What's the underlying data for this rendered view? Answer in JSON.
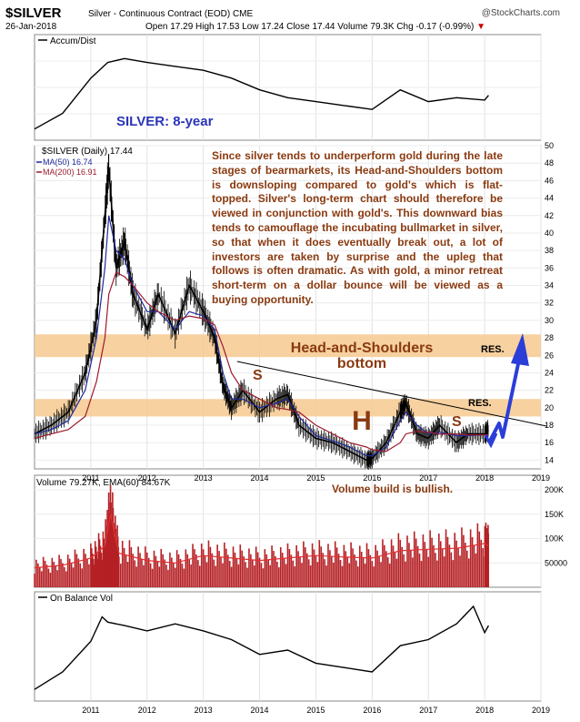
{
  "header": {
    "symbol": "$SILVER",
    "description": "Silver - Continuous Contract (EOD) CME",
    "site": "@StockCharts.com",
    "date": "26-Jan-2018",
    "ohlc": "Open 17.29  High 17.53  Low 17.24  Close 17.44  Volume 79.3K  Chg -0.17 (-0.99%)",
    "chg_arrow": "▼"
  },
  "annotations": {
    "period_label": "SILVER: 8-year",
    "note": "Since silver tends to underperform gold during the late stages of bearmarkets, its Head-and-Shoulders bottom is downsloping compared to gold's which is flat-topped. Silver's long-term chart should therefore be viewed in conjunction with gold's. This downward bias tends to camouflage the incubating bullmarket in silver, so that when it does eventually break out, a lot of investors are taken by surprise and the upleg that follows is often dramatic. As with gold, a minor retreat short-term on a dollar bounce will be viewed as a buying opportunity.",
    "hs_label_1": "Head-and-Shoulders",
    "hs_label_2": "bottom",
    "res_upper": "RES.",
    "res_lower": "RES.",
    "s_left": "S",
    "h_label": "H",
    "s_right": "S",
    "volume_note": "Volume build is bullish."
  },
  "colors": {
    "price": "#000000",
    "ma50": "#1f2a9c",
    "ma200": "#9c1a2e",
    "zone": "#f6c98f",
    "annotation": "#8a3a10",
    "volume": "#b52025",
    "arrow": "#2b3ed8",
    "label_blue": "#2a35b8"
  },
  "chart_data": [
    {
      "type": "line",
      "panel": "accum_dist",
      "legend": [
        "Accum/Dist"
      ],
      "x": [
        2010.0,
        2010.5,
        2011.0,
        2011.3,
        2011.6,
        2012.0,
        2012.5,
        2013.0,
        2013.5,
        2014.0,
        2014.5,
        2015.0,
        2015.5,
        2016.0,
        2016.5,
        2017.0,
        2017.5,
        2018.0,
        2018.07
      ],
      "y": [
        0.05,
        0.25,
        0.7,
        0.9,
        0.95,
        0.9,
        0.85,
        0.8,
        0.7,
        0.55,
        0.45,
        0.4,
        0.35,
        0.3,
        0.55,
        0.4,
        0.45,
        0.42,
        0.48
      ],
      "normalized": true,
      "grid": true
    },
    {
      "type": "line",
      "panel": "price",
      "title": "$SILVER (Daily) 17.44",
      "series_names": [
        "MA(50) 16.74",
        "MA(200) 16.91"
      ],
      "x": [
        2010.0,
        2010.3,
        2010.6,
        2010.9,
        2011.1,
        2011.25,
        2011.32,
        2011.45,
        2011.6,
        2011.75,
        2012.0,
        2012.2,
        2012.5,
        2012.75,
        2013.0,
        2013.2,
        2013.35,
        2013.5,
        2013.7,
        2014.0,
        2014.3,
        2014.5,
        2014.7,
        2015.0,
        2015.3,
        2015.6,
        2015.9,
        2016.0,
        2016.25,
        2016.5,
        2016.6,
        2016.8,
        2017.0,
        2017.2,
        2017.5,
        2017.7,
        2018.0,
        2018.07
      ],
      "close": [
        17.0,
        18.0,
        19.5,
        24.0,
        30.0,
        42.0,
        47.5,
        36.0,
        39.0,
        33.0,
        29.0,
        33.0,
        28.5,
        34.0,
        31.0,
        28.0,
        22.5,
        20.0,
        22.0,
        19.5,
        21.0,
        21.5,
        18.0,
        16.5,
        16.0,
        15.0,
        14.0,
        14.2,
        16.0,
        19.5,
        20.5,
        17.0,
        16.5,
        18.0,
        16.0,
        17.0,
        17.0,
        17.44
      ],
      "ma50": [
        17.0,
        17.5,
        18.5,
        22.0,
        28.0,
        36.0,
        42.0,
        38.0,
        37.0,
        34.0,
        31.0,
        31.0,
        29.0,
        31.0,
        30.5,
        29.0,
        24.0,
        21.0,
        21.0,
        20.0,
        20.5,
        21.0,
        19.0,
        16.8,
        16.2,
        15.5,
        14.5,
        14.5,
        15.5,
        18.5,
        19.5,
        18.0,
        17.0,
        17.2,
        16.8,
        16.8,
        16.9,
        16.74
      ],
      "ma200": [
        16.5,
        17.0,
        17.5,
        19.0,
        23.0,
        28.0,
        33.0,
        35.5,
        35.0,
        34.0,
        32.0,
        31.0,
        30.0,
        30.5,
        30.2,
        29.5,
        27.0,
        24.0,
        22.0,
        21.0,
        20.0,
        19.8,
        19.5,
        18.0,
        17.0,
        16.0,
        15.5,
        15.2,
        15.0,
        16.0,
        17.0,
        17.3,
        17.2,
        17.0,
        17.0,
        16.9,
        16.9,
        16.91
      ],
      "ylim": [
        13,
        50
      ],
      "y_ticks": [
        14,
        16,
        18,
        20,
        22,
        24,
        26,
        28,
        30,
        32,
        34,
        36,
        38,
        40,
        42,
        44,
        46,
        48,
        50
      ],
      "zones": [
        [
          25.8,
          28.4
        ],
        [
          19.0,
          21.0
        ]
      ],
      "trendline": [
        [
          2013.6,
          25.3
        ],
        [
          2019.1,
          17.9
        ]
      ],
      "grid": true
    },
    {
      "type": "bar",
      "panel": "volume",
      "legend": [
        "Volume 79.27K, EMA(60) 84.67K"
      ],
      "x": [
        2010.0,
        2010.5,
        2011.0,
        2011.25,
        2011.35,
        2011.5,
        2012.0,
        2012.5,
        2013.0,
        2013.5,
        2014.0,
        2014.5,
        2015.0,
        2015.5,
        2016.0,
        2016.5,
        2017.0,
        2017.5,
        2018.0,
        2018.07
      ],
      "ema": [
        40000,
        45000,
        60000,
        85000,
        150000,
        70000,
        55000,
        50000,
        65000,
        60000,
        55000,
        60000,
        65000,
        62000,
        60000,
        75000,
        78000,
        80000,
        90000,
        84670
      ],
      "y_ticks": [
        50000,
        100000,
        150000,
        200000
      ],
      "y_tick_labels": [
        "50000",
        "100K",
        "150K",
        "200K"
      ],
      "grid": true
    },
    {
      "type": "line",
      "panel": "obv",
      "legend": [
        "On Balance Vol"
      ],
      "x": [
        2010.0,
        2010.5,
        2011.0,
        2011.2,
        2011.3,
        2011.6,
        2012.0,
        2012.5,
        2013.0,
        2013.5,
        2014.0,
        2014.5,
        2015.0,
        2015.5,
        2016.0,
        2016.5,
        2017.0,
        2017.5,
        2017.8,
        2018.0,
        2018.07
      ],
      "y": [
        0.05,
        0.25,
        0.6,
        0.88,
        0.82,
        0.78,
        0.72,
        0.8,
        0.72,
        0.62,
        0.45,
        0.5,
        0.35,
        0.3,
        0.25,
        0.55,
        0.62,
        0.8,
        1.0,
        0.7,
        0.78
      ],
      "normalized": true,
      "x_tick_labels": [
        "2011",
        "2012",
        "2013",
        "2014",
        "2015",
        "2016",
        "2017",
        "2018",
        "2019"
      ],
      "grid": true
    }
  ]
}
